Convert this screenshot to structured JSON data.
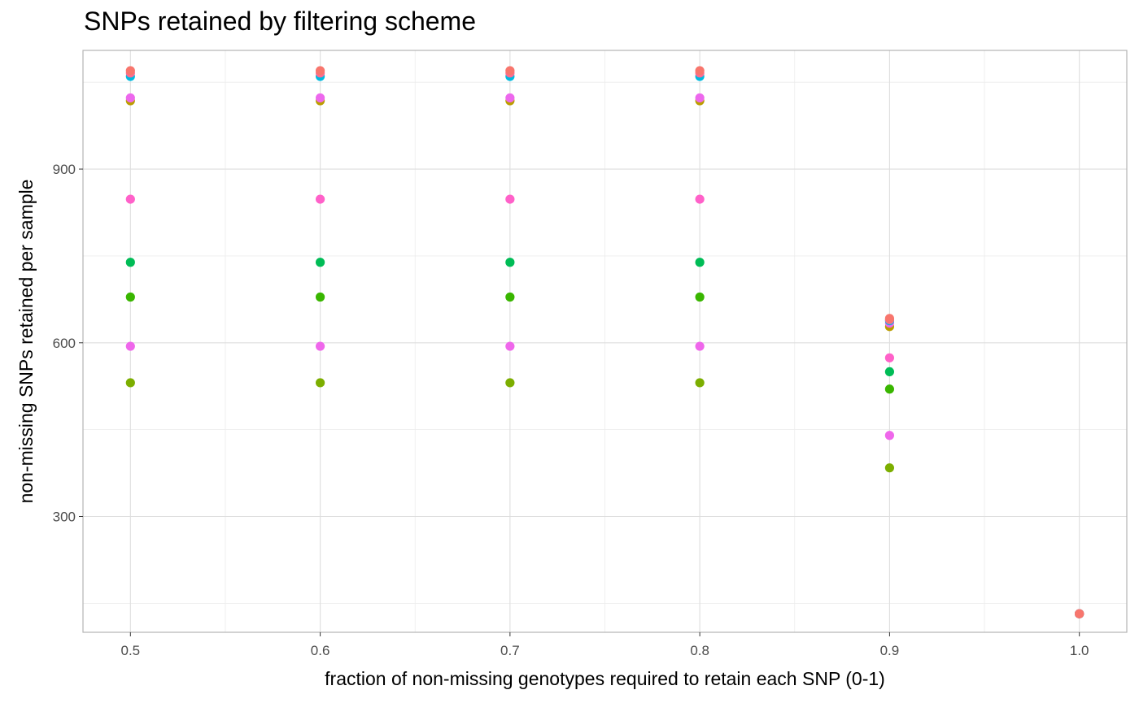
{
  "chart_data": {
    "type": "scatter",
    "title": "SNPs retained by filtering scheme",
    "xlabel": "fraction of non-missing genotypes required to retain each SNP (0-1)",
    "ylabel": "non-missing SNPs retained per sample",
    "xlim": [
      0.475,
      1.025
    ],
    "ylim": [
      100,
      1105
    ],
    "x_ticks": [
      0.5,
      0.6,
      0.7,
      0.8,
      0.9,
      1.0
    ],
    "x_tick_labels": [
      "0.5",
      "0.6",
      "0.7",
      "0.8",
      "0.9",
      "1.0"
    ],
    "y_ticks": [
      300,
      600,
      900
    ],
    "y_tick_labels": [
      "300",
      "600",
      "900"
    ],
    "grid": true,
    "legend": "none",
    "series": [
      {
        "color": "#F8766D",
        "points": [
          [
            0.5,
            1070
          ],
          [
            0.6,
            1070
          ],
          [
            0.7,
            1070
          ],
          [
            0.8,
            1070
          ],
          [
            0.9,
            642
          ],
          [
            1.0,
            132
          ]
        ]
      },
      {
        "color": "#FF6C91",
        "points": [
          [
            0.5,
            1066
          ],
          [
            0.6,
            1066
          ],
          [
            0.7,
            1066
          ],
          [
            0.8,
            1066
          ],
          [
            0.9,
            640
          ],
          [
            1.0,
            132
          ]
        ]
      },
      {
        "color": "#00BAE0",
        "points": [
          [
            0.5,
            1060
          ],
          [
            0.6,
            1060
          ],
          [
            0.7,
            1060
          ],
          [
            0.8,
            1060
          ],
          [
            0.9,
            638
          ],
          [
            1.0,
            132
          ]
        ]
      },
      {
        "color": "#ED68ED",
        "points": [
          [
            0.5,
            1023
          ],
          [
            0.6,
            1023
          ],
          [
            0.7,
            1023
          ],
          [
            0.8,
            1023
          ],
          [
            0.9,
            634
          ],
          [
            1.0,
            132
          ]
        ]
      },
      {
        "color": "#BB9D00",
        "points": [
          [
            0.5,
            1018
          ],
          [
            0.6,
            1018
          ],
          [
            0.7,
            1018
          ],
          [
            0.8,
            1018
          ],
          [
            0.9,
            628
          ],
          [
            1.0,
            132
          ]
        ]
      },
      {
        "color": "#FF61C9",
        "points": [
          [
            0.5,
            848
          ],
          [
            0.6,
            848
          ],
          [
            0.7,
            848
          ],
          [
            0.8,
            848
          ],
          [
            0.9,
            574
          ],
          [
            1.0,
            132
          ]
        ]
      },
      {
        "color": "#00BC56",
        "points": [
          [
            0.5,
            739
          ],
          [
            0.6,
            739
          ],
          [
            0.7,
            739
          ],
          [
            0.8,
            739
          ],
          [
            0.9,
            550
          ],
          [
            1.0,
            132
          ]
        ]
      },
      {
        "color": "#39B600",
        "points": [
          [
            0.5,
            679
          ],
          [
            0.6,
            679
          ],
          [
            0.7,
            679
          ],
          [
            0.8,
            679
          ],
          [
            0.9,
            520
          ],
          [
            1.0,
            132
          ]
        ]
      },
      {
        "color": "#EF67EB",
        "points": [
          [
            0.5,
            594
          ],
          [
            0.6,
            594
          ],
          [
            0.7,
            594
          ],
          [
            0.8,
            594
          ],
          [
            0.9,
            440
          ],
          [
            1.0,
            132
          ]
        ]
      },
      {
        "color": "#7CAE00",
        "points": [
          [
            0.5,
            531
          ],
          [
            0.6,
            531
          ],
          [
            0.7,
            531
          ],
          [
            0.8,
            531
          ],
          [
            0.9,
            384
          ],
          [
            1.0,
            132
          ]
        ]
      }
    ]
  }
}
